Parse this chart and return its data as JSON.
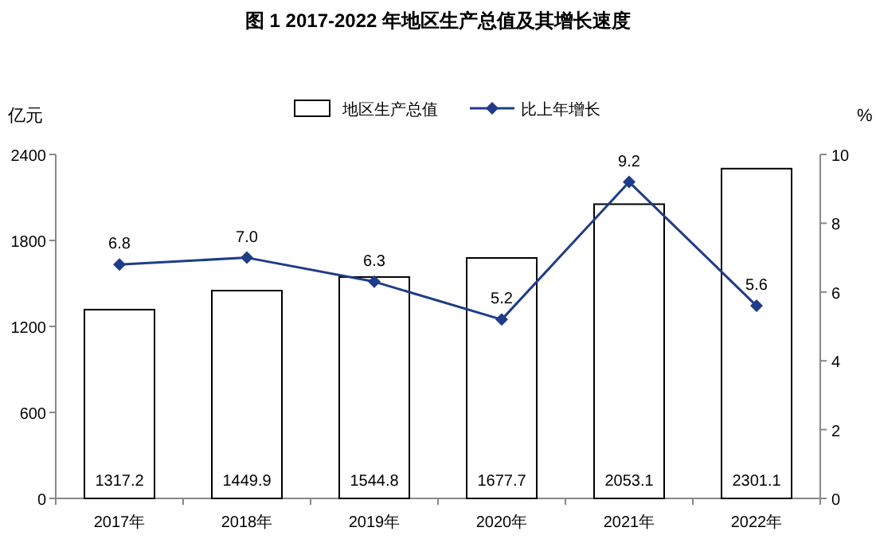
{
  "chart_data": {
    "type": "bar",
    "title": "图 1  2017-2022 年地区生产总值及其增长速度",
    "ylabel": "亿元",
    "y2label": "%",
    "legend": "top",
    "categories": [
      "2017年",
      "2018年",
      "2019年",
      "2020年",
      "2021年",
      "2022年"
    ],
    "series": [
      {
        "name": "地区生产总值",
        "color": "#ffffff",
        "values": [
          1317.2,
          1449.9,
          1544.8,
          1677.7,
          2053.1,
          2301.1
        ],
        "value_labels": [
          "1317.2",
          "1449.9",
          "1544.8",
          "1677.7",
          "2053.1",
          "2301.1"
        ]
      },
      {
        "name": "比上年增长",
        "type": "line",
        "axis": "y2",
        "color": "#1f3c88",
        "marker": "diamond",
        "values": [
          6.8,
          7.0,
          6.3,
          5.2,
          9.2,
          5.6
        ],
        "value_labels": [
          "6.8",
          "7.0",
          "6.3",
          "5.2",
          "9.2",
          "5.6"
        ]
      }
    ],
    "ylim": [
      0,
      2400
    ],
    "yticks": [
      0,
      600,
      1200,
      1800,
      2400
    ],
    "y2lim": [
      0,
      10
    ],
    "y2ticks": [
      0,
      2,
      4,
      6,
      8,
      10
    ]
  }
}
